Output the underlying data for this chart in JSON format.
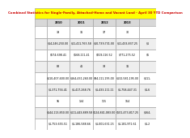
{
  "title": "Combined Statistics for Single-Family, Attached-Home and Vacant Land - April 30 YTD Comparison",
  "col_labels": [
    "",
    "2010",
    "2011",
    "2012",
    "2013",
    ""
  ],
  "rows": [
    [
      "",
      "39",
      "31",
      "37",
      "30",
      ""
    ],
    [
      "",
      "$14,246,250.00",
      "$11,411,763.58",
      "$10,739,731.00",
      "$11,433,837.25",
      "$1"
    ],
    [
      "",
      "$674,698.41",
      "$568,111.41",
      "$819,116.52",
      "$771,275.52",
      "$6"
    ],
    [
      "",
      "88",
      "41",
      "38",
      "31",
      ""
    ],
    [
      "",
      "$110,407,600.00",
      "$164,431,260.00",
      "$94,111,195.00",
      "$132,581,195.00",
      "$111,"
    ],
    [
      "",
      "$1,371,756.41",
      "$1,417,268.76",
      "$1,433,111.11",
      "$1,758,447.31",
      "$1,6"
    ],
    [
      "",
      "95",
      "134",
      "115",
      "164",
      ""
    ],
    [
      "",
      "$144,113,850.00",
      "$111,443,889.58",
      "$524,841,083.00",
      "$501,473,817.25",
      "$164,"
    ],
    [
      "",
      "$1,753,655.51",
      "$1,186,588.66",
      "$1,001,631.15",
      "$1,181,971.61",
      "$1,2"
    ]
  ],
  "header_bg": "#ffff00",
  "title_color": "#cc0000",
  "col_header_bg": "#d8d8d8",
  "row_bg_even": "#ffffff",
  "row_bg_odd": "#eeeeee",
  "grid_color": "#999999",
  "text_color": "#000000",
  "title_fontsize": 2.8,
  "cell_fontsize": 2.3,
  "col_header_fontsize": 2.5
}
